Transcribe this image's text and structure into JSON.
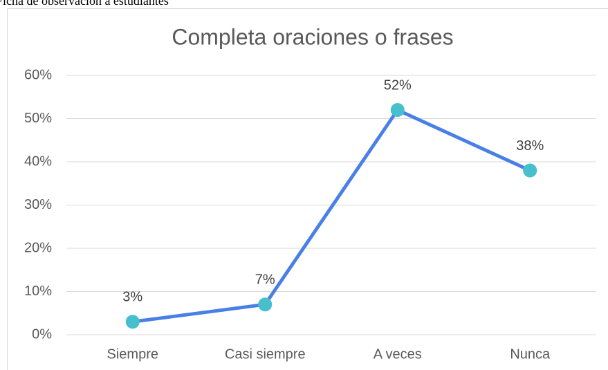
{
  "header_text": "Ficha de observación a estudiantes",
  "chart_data": {
    "type": "line",
    "title": "Completa oraciones o frases",
    "categories": [
      "Siempre",
      "Casi siempre",
      "A veces",
      "Nunca"
    ],
    "values": [
      3,
      7,
      52,
      38
    ],
    "value_labels": [
      "3%",
      "7%",
      "52%",
      "38%"
    ],
    "color": "#4a80e6",
    "marker_color": "#47bfcc",
    "ylim": [
      0,
      60
    ],
    "yticks": [
      {
        "value": 0,
        "label": "0%"
      },
      {
        "value": 10,
        "label": "10%"
      },
      {
        "value": 20,
        "label": "20%"
      },
      {
        "value": 30,
        "label": "30%"
      },
      {
        "value": 40,
        "label": "40%"
      },
      {
        "value": 50,
        "label": "50%"
      },
      {
        "value": 60,
        "label": "60%"
      }
    ],
    "grid": true
  }
}
